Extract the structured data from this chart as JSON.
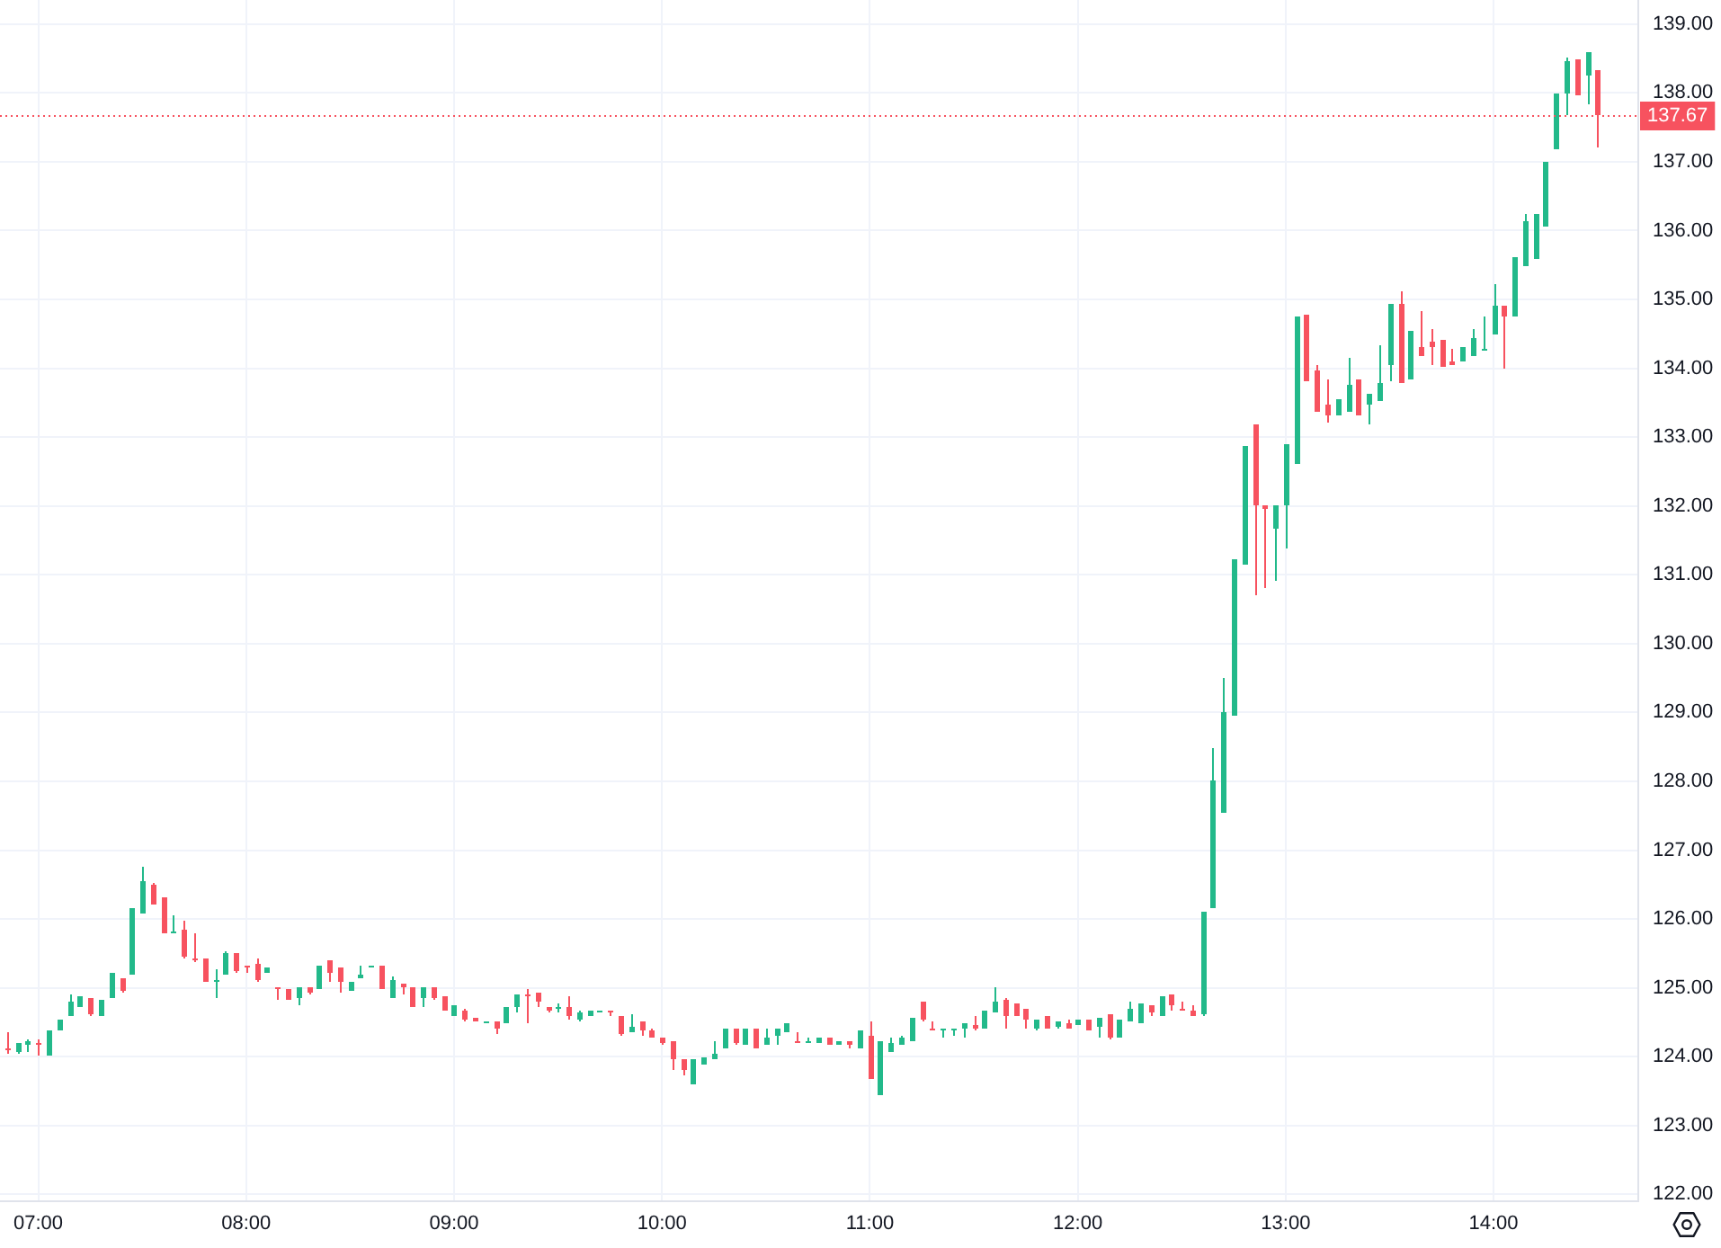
{
  "chart_data": {
    "type": "candlestick",
    "x": [
      6.85,
      6.9,
      6.95,
      7,
      7.05,
      7.1,
      7.15,
      7.2,
      7.25,
      7.3,
      7.35,
      7.4,
      7.45,
      7.5,
      7.55,
      7.6,
      7.65,
      7.7,
      7.75,
      7.8,
      7.85,
      7.9,
      7.95,
      8,
      8.05,
      8.1,
      8.15,
      8.2,
      8.25,
      8.3,
      8.35,
      8.4,
      8.45,
      8.5,
      8.55,
      8.6,
      8.65,
      8.7,
      8.75,
      8.8,
      8.85,
      8.9,
      8.95,
      9,
      9.05,
      9.1,
      9.15,
      9.2,
      9.25,
      9.3,
      9.35,
      9.4,
      9.45,
      9.5,
      9.55,
      9.6,
      9.65,
      9.7,
      9.75,
      9.8,
      9.85,
      9.9,
      9.95,
      10,
      10.05,
      10.1,
      10.15,
      10.2,
      10.25,
      10.3,
      10.35,
      10.4,
      10.45,
      10.5,
      10.55,
      10.6,
      10.65,
      10.7,
      10.75,
      10.8,
      10.85,
      10.9,
      10.95,
      11,
      11.05,
      11.1,
      11.15,
      11.2,
      11.25,
      11.3,
      11.35,
      11.4,
      11.45,
      11.5,
      11.55,
      11.6,
      11.65,
      11.7,
      11.75,
      11.8,
      11.85,
      11.9,
      11.95,
      12,
      12.05,
      12.1,
      12.15,
      12.2,
      12.25,
      12.3,
      12.35,
      12.4,
      12.45,
      12.5,
      12.55,
      12.6,
      12.65,
      12.7,
      12.75,
      12.8,
      12.85,
      12.9,
      12.95,
      13,
      13.05,
      13.1,
      13.15,
      13.2,
      13.25,
      13.3,
      13.35,
      13.4,
      13.45,
      13.5,
      13.55,
      13.6,
      13.65,
      13.7,
      13.75,
      13.8,
      13.85,
      13.9,
      13.95,
      14,
      14.05,
      14.1,
      14.15,
      14.2,
      14.25,
      14.3,
      14.35,
      14.4,
      14.45,
      14.5
    ],
    "ohlc": [
      [
        124.13,
        124.35,
        124.04,
        124.09
      ],
      [
        124.07,
        124.19,
        124.04,
        124.19
      ],
      [
        124.17,
        124.24,
        124.07,
        124.22
      ],
      [
        124.19,
        124.24,
        124.02,
        124.17
      ],
      [
        124.02,
        124.39,
        124.02,
        124.39
      ],
      [
        124.39,
        124.54,
        124.39,
        124.54
      ],
      [
        124.59,
        124.91,
        124.59,
        124.8
      ],
      [
        124.72,
        124.87,
        124.72,
        124.87
      ],
      [
        124.84,
        124.84,
        124.59,
        124.62
      ],
      [
        124.59,
        124.83,
        124.59,
        124.83
      ],
      [
        124.84,
        125.22,
        124.84,
        125.22
      ],
      [
        125.13,
        125.13,
        124.93,
        124.95
      ],
      [
        125.2,
        126.15,
        125.2,
        126.15
      ],
      [
        126.09,
        126.76,
        126.09,
        126.55
      ],
      [
        126.5,
        126.52,
        126.22,
        126.22
      ],
      [
        126.32,
        126.32,
        125.78,
        125.8
      ],
      [
        125.78,
        126.06,
        125.78,
        125.82
      ],
      [
        125.85,
        125.97,
        125.43,
        125.45
      ],
      [
        125.42,
        125.8,
        125.37,
        125.4
      ],
      [
        125.42,
        125.42,
        125.09,
        125.1
      ],
      [
        125.1,
        125.26,
        124.84,
        125.12
      ],
      [
        125.19,
        125.54,
        125.19,
        125.5
      ],
      [
        125.5,
        125.5,
        125.22,
        125.25
      ],
      [
        125.32,
        125.32,
        125.23,
        125.3
      ],
      [
        125.35,
        125.42,
        125.1,
        125.12
      ],
      [
        125.22,
        125.29,
        125.22,
        125.29
      ],
      [
        125,
        125,
        124.83,
        124.98
      ],
      [
        124.98,
        124.98,
        124.83,
        124.83
      ],
      [
        124.84,
        125.02,
        124.74,
        125.02
      ],
      [
        125,
        125,
        124.91,
        124.92
      ],
      [
        124.98,
        125.32,
        124.98,
        125.32
      ],
      [
        125.39,
        125.39,
        125.09,
        125.23
      ],
      [
        125.29,
        125.29,
        124.94,
        125.1
      ],
      [
        124.96,
        125.1,
        124.96,
        125.1
      ],
      [
        125.13,
        125.32,
        125.13,
        125.19
      ],
      [
        125.3,
        125.33,
        125.29,
        125.33
      ],
      [
        125.31,
        125.31,
        124.98,
        124.98
      ],
      [
        124.85,
        125.16,
        124.85,
        125.12
      ],
      [
        125.07,
        125.07,
        124.91,
        125.02
      ],
      [
        125,
        125,
        124.72,
        124.72
      ],
      [
        124.84,
        125,
        124.71,
        125
      ],
      [
        125.02,
        125.02,
        124.82,
        124.85
      ],
      [
        124.88,
        124.88,
        124.66,
        124.66
      ],
      [
        124.58,
        124.75,
        124.58,
        124.75
      ],
      [
        124.68,
        124.7,
        124.51,
        124.53
      ],
      [
        124.56,
        124.56,
        124.51,
        124.52
      ],
      [
        124.5,
        124.51,
        124.49,
        124.51
      ],
      [
        124.51,
        124.51,
        124.34,
        124.4
      ],
      [
        124.49,
        124.73,
        124.49,
        124.73
      ],
      [
        124.71,
        124.91,
        124.64,
        124.91
      ],
      [
        124.91,
        124.97,
        124.49,
        124.9
      ],
      [
        124.93,
        124.93,
        124.71,
        124.8
      ],
      [
        124.73,
        124.73,
        124.64,
        124.66
      ],
      [
        124.71,
        124.77,
        124.64,
        124.72
      ],
      [
        124.71,
        124.88,
        124.55,
        124.58
      ],
      [
        124.53,
        124.68,
        124.5,
        124.65
      ],
      [
        124.59,
        124.66,
        124.59,
        124.66
      ],
      [
        124.65,
        124.66,
        124.64,
        124.66
      ],
      [
        124.66,
        124.66,
        124.58,
        124.63
      ],
      [
        124.58,
        124.58,
        124.31,
        124.33
      ],
      [
        124.35,
        124.62,
        124.35,
        124.44
      ],
      [
        124.5,
        124.5,
        124.31,
        124.38
      ],
      [
        124.38,
        124.42,
        124.27,
        124.27
      ],
      [
        124.27,
        124.27,
        124.18,
        124.2
      ],
      [
        124.22,
        124.22,
        123.81,
        123.97
      ],
      [
        123.97,
        123.97,
        123.72,
        123.8
      ],
      [
        123.6,
        123.97,
        123.6,
        123.96
      ],
      [
        123.88,
        124,
        123.88,
        124
      ],
      [
        123.97,
        124.22,
        123.97,
        124.05
      ],
      [
        124.11,
        124.42,
        124.11,
        124.42
      ],
      [
        124.4,
        124.42,
        124.18,
        124.2
      ],
      [
        124.16,
        124.4,
        124.16,
        124.4
      ],
      [
        124.4,
        124.4,
        124.11,
        124.11
      ],
      [
        124.18,
        124.4,
        124.18,
        124.29
      ],
      [
        124.31,
        124.4,
        124.16,
        124.4
      ],
      [
        124.35,
        124.49,
        124.35,
        124.49
      ],
      [
        124.22,
        124.35,
        124.19,
        124.19
      ],
      [
        124.2,
        124.28,
        124.19,
        124.22
      ],
      [
        124.2,
        124.28,
        124.2,
        124.28
      ],
      [
        124.27,
        124.27,
        124.18,
        124.18
      ],
      [
        124.17,
        124.22,
        124.17,
        124.22
      ],
      [
        124.22,
        124.22,
        124.12,
        124.18
      ],
      [
        124.13,
        124.37,
        124.11,
        124.37
      ],
      [
        124.31,
        124.51,
        123.67,
        123.67
      ],
      [
        123.45,
        124.22,
        123.45,
        124.22
      ],
      [
        124.06,
        124.28,
        124.06,
        124.2
      ],
      [
        124.16,
        124.31,
        124.16,
        124.28
      ],
      [
        124.22,
        124.56,
        124.22,
        124.56
      ],
      [
        124.81,
        124.81,
        124.51,
        124.53
      ],
      [
        124.42,
        124.51,
        124.37,
        124.38
      ],
      [
        124.37,
        124.42,
        124.28,
        124.4
      ],
      [
        124.37,
        124.42,
        124.31,
        124.42
      ],
      [
        124.4,
        124.49,
        124.27,
        124.49
      ],
      [
        124.47,
        124.59,
        124.37,
        124.42
      ],
      [
        124.4,
        124.66,
        124.4,
        124.66
      ],
      [
        124.64,
        125,
        124.64,
        124.8
      ],
      [
        124.82,
        124.84,
        124.4,
        124.6
      ],
      [
        124.77,
        124.77,
        124.6,
        124.6
      ],
      [
        124.69,
        124.69,
        124.4,
        124.55
      ],
      [
        124.4,
        124.55,
        124.37,
        124.55
      ],
      [
        124.58,
        124.58,
        124.4,
        124.42
      ],
      [
        124.44,
        124.51,
        124.42,
        124.5
      ],
      [
        124.49,
        124.53,
        124.4,
        124.4
      ],
      [
        124.46,
        124.55,
        124.46,
        124.53
      ],
      [
        124.55,
        124.55,
        124.37,
        124.37
      ],
      [
        124.44,
        124.56,
        124.29,
        124.56
      ],
      [
        124.62,
        124.62,
        124.25,
        124.29
      ],
      [
        124.28,
        124.55,
        124.28,
        124.55
      ],
      [
        124.5,
        124.8,
        124.5,
        124.7
      ],
      [
        124.49,
        124.78,
        124.49,
        124.78
      ],
      [
        124.75,
        124.75,
        124.59,
        124.63
      ],
      [
        124.58,
        124.88,
        124.58,
        124.88
      ],
      [
        124.9,
        124.9,
        124.66,
        124.75
      ],
      [
        124.7,
        124.8,
        124.66,
        124.66
      ],
      [
        124.68,
        124.75,
        124.58,
        124.58
      ],
      [
        124.62,
        126.1,
        124.6,
        126.1
      ],
      [
        126.17,
        128.47,
        126.17,
        128
      ],
      [
        127.53,
        129.5,
        127.53,
        129
      ],
      [
        128.96,
        131.23,
        128.96,
        131.23
      ],
      [
        131.14,
        132.86,
        131.14,
        132.86
      ],
      [
        133.18,
        133.18,
        130.7,
        132
      ],
      [
        132.01,
        132.01,
        130.81,
        131.97
      ],
      [
        131.66,
        132.01,
        130.9,
        132.01
      ],
      [
        132.01,
        132.89,
        131.38,
        132.89
      ],
      [
        132.61,
        134.75,
        132.61,
        134.75
      ],
      [
        134.79,
        134.79,
        133.82,
        133.82
      ],
      [
        133.97,
        134.04,
        133.37,
        133.37
      ],
      [
        133.48,
        133.84,
        133.22,
        133.31
      ],
      [
        133.31,
        133.55,
        133.31,
        133.55
      ],
      [
        133.37,
        134.16,
        133.37,
        133.77
      ],
      [
        133.84,
        133.84,
        133.31,
        133.31
      ],
      [
        133.48,
        133.64,
        133.18,
        133.64
      ],
      [
        133.53,
        134.34,
        133.53,
        133.79
      ],
      [
        134.05,
        134.93,
        133.81,
        134.93
      ],
      [
        134.93,
        135.13,
        133.79,
        133.79
      ],
      [
        133.84,
        134.54,
        133.84,
        134.54
      ],
      [
        134.32,
        134.82,
        134.17,
        134.17
      ],
      [
        134.39,
        134.58,
        134.05,
        134.32
      ],
      [
        134.42,
        134.42,
        134.01,
        134.01
      ],
      [
        134.09,
        134.29,
        134.04,
        134.04
      ],
      [
        134.11,
        134.31,
        134.11,
        134.31
      ],
      [
        134.17,
        134.57,
        134.17,
        134.44
      ],
      [
        134.26,
        134.76,
        134.26,
        134.29
      ],
      [
        134.48,
        135.22,
        134.48,
        134.92
      ],
      [
        134.92,
        134.92,
        134,
        134.74
      ],
      [
        134.74,
        135.62,
        134.74,
        135.62
      ],
      [
        135.48,
        136.24,
        135.48,
        136.14
      ],
      [
        135.59,
        136.24,
        135.59,
        136.24
      ],
      [
        136.05,
        136.99,
        136.05,
        136.99
      ],
      [
        137.19,
        138,
        137.17,
        138
      ],
      [
        138,
        138.52,
        137.67,
        138.45
      ],
      [
        138.48,
        138.48,
        137.97,
        137.97
      ],
      [
        138.24,
        138.59,
        137.84,
        138.59
      ],
      [
        138.34,
        138.34,
        137.21,
        137.67
      ]
    ],
    "colors": [
      "#f7525f",
      "#22b98a",
      "#22b98a",
      "#f7525f",
      "#22b98a",
      "#22b98a",
      "#22b98a",
      "#22b98a",
      "#f7525f",
      "#22b98a",
      "#22b98a",
      "#f7525f",
      "#22b98a",
      "#22b98a",
      "#f7525f",
      "#f7525f",
      "#22b98a",
      "#f7525f",
      "#f7525f",
      "#f7525f",
      "#22b98a",
      "#22b98a",
      "#f7525f",
      "#f7525f",
      "#f7525f",
      "#22b98a",
      "#f7525f",
      "#f7525f",
      "#22b98a",
      "#f7525f",
      "#22b98a",
      "#f7525f",
      "#f7525f",
      "#22b98a",
      "#22b98a",
      "#22b98a",
      "#f7525f",
      "#22b98a",
      "#f7525f",
      "#f7525f",
      "#22b98a",
      "#f7525f",
      "#f7525f",
      "#22b98a",
      "#f7525f",
      "#f7525f",
      "#22b98a",
      "#f7525f",
      "#22b98a",
      "#22b98a",
      "#f7525f",
      "#f7525f",
      "#f7525f",
      "#22b98a",
      "#f7525f",
      "#22b98a",
      "#22b98a",
      "#22b98a",
      "#f7525f",
      "#f7525f",
      "#22b98a",
      "#f7525f",
      "#f7525f",
      "#f7525f",
      "#f7525f",
      "#f7525f",
      "#22b98a",
      "#22b98a",
      "#22b98a",
      "#22b98a",
      "#f7525f",
      "#22b98a",
      "#f7525f",
      "#22b98a",
      "#22b98a",
      "#22b98a",
      "#f7525f",
      "#22b98a",
      "#22b98a",
      "#f7525f",
      "#22b98a",
      "#f7525f",
      "#22b98a",
      "#f7525f",
      "#22b98a",
      "#22b98a",
      "#22b98a",
      "#22b98a",
      "#f7525f",
      "#f7525f",
      "#22b98a",
      "#22b98a",
      "#22b98a",
      "#f7525f",
      "#22b98a",
      "#22b98a",
      "#f7525f",
      "#f7525f",
      "#f7525f",
      "#22b98a",
      "#f7525f",
      "#22b98a",
      "#f7525f",
      "#22b98a",
      "#f7525f",
      "#22b98a",
      "#f7525f",
      "#22b98a",
      "#22b98a",
      "#22b98a",
      "#f7525f",
      "#22b98a",
      "#f7525f",
      "#f7525f",
      "#f7525f",
      "#22b98a",
      "#22b98a",
      "#22b98a",
      "#22b98a",
      "#22b98a",
      "#f7525f",
      "#f7525f",
      "#22b98a",
      "#22b98a",
      "#22b98a",
      "#f7525f",
      "#f7525f",
      "#f7525f",
      "#22b98a",
      "#22b98a",
      "#f7525f",
      "#22b98a",
      "#22b98a",
      "#22b98a",
      "#f7525f",
      "#22b98a",
      "#f7525f",
      "#f7525f",
      "#f7525f",
      "#f7525f",
      "#22b98a",
      "#22b98a",
      "#22b98a",
      "#22b98a",
      "#f7525f",
      "#22b98a",
      "#22b98a",
      "#22b98a",
      "#22b98a",
      "#22b98a",
      "#22b98a",
      "#f7525f",
      "#22b98a",
      "#f7525f"
    ],
    "xlim": [
      6.816,
      14.696
    ],
    "xticks": [
      {
        "value": 7,
        "label": "07:00"
      },
      {
        "value": 8,
        "label": "08:00"
      },
      {
        "value": 9,
        "label": "09:00"
      },
      {
        "value": 10,
        "label": "10:00"
      },
      {
        "value": 11,
        "label": "11:00"
      },
      {
        "value": 12,
        "label": "12:00"
      },
      {
        "value": 13,
        "label": "13:00"
      },
      {
        "value": 14,
        "label": "14:00"
      }
    ],
    "ylim": [
      121.9,
      139.35
    ],
    "yticks": [
      {
        "value": 122,
        "label": "122.00"
      },
      {
        "value": 123,
        "label": "123.00"
      },
      {
        "value": 124,
        "label": "124.00"
      },
      {
        "value": 125,
        "label": "125.00"
      },
      {
        "value": 126,
        "label": "126.00"
      },
      {
        "value": 127,
        "label": "127.00"
      },
      {
        "value": 128,
        "label": "128.00"
      },
      {
        "value": 129,
        "label": "129.00"
      },
      {
        "value": 130,
        "label": "130.00"
      },
      {
        "value": 131,
        "label": "131.00"
      },
      {
        "value": 132,
        "label": "132.00"
      },
      {
        "value": 133,
        "label": "133.00"
      },
      {
        "value": 134,
        "label": "134.00"
      },
      {
        "value": 135,
        "label": "135.00"
      },
      {
        "value": 136,
        "label": "136.00"
      },
      {
        "value": 137,
        "label": "137.00"
      },
      {
        "value": 138,
        "label": "138.00"
      },
      {
        "value": 139,
        "label": "139.00"
      }
    ],
    "grid": true,
    "ref_lines": [
      {
        "axis": "y",
        "value": 137.67,
        "label": "137.67",
        "color": "#f7525f",
        "line_style": "dotted"
      }
    ]
  }
}
